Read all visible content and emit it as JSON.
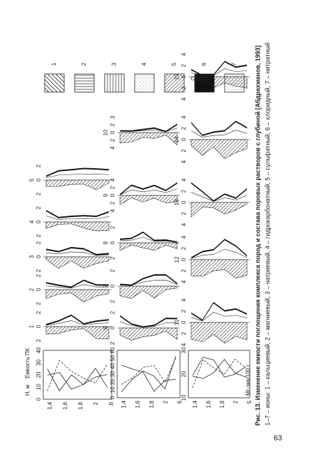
{
  "caption": {
    "title": "Рис. 13. Изменение емкости поглощения комплекса пород и состава поровых растворов с глубиной [Абдрахманов, 1993]",
    "legend_text": "1–7 – ионы: 1 – кальциевый, 2 – магниевый, 3 – натриевый, 4 – гидрокарбонатный, 5 – сульфатный, 6 – хлоридный, 7 – нитратный"
  },
  "legend": [
    "1",
    "2",
    "3",
    "4",
    "5",
    "6",
    "7"
  ],
  "axis": {
    "depth_label": "Н, м",
    "capacity_label": "Емкость ПК",
    "units_label": "Мг-экв/100 г"
  },
  "rows": [
    {
      "depth_ticks": [
        "1,4",
        "1,6",
        "1,8",
        "2",
        ",6"
      ],
      "capacity_ticks": [
        "0",
        "10",
        "20",
        "30",
        "40"
      ],
      "panels": [
        {
          "label": "1",
          "ticks": [
            "2",
            "0",
            "2"
          ]
        },
        {
          "label": "2",
          "ticks": [
            "2",
            "0",
            "2"
          ]
        },
        {
          "label": "3",
          "ticks": [
            "2",
            "0",
            "2"
          ]
        },
        {
          "label": "4",
          "ticks": [
            "2",
            "0",
            "2"
          ]
        },
        {
          "label": "5",
          "ticks": [
            "2",
            "0",
            "2"
          ]
        }
      ]
    },
    {
      "depth_ticks": [
        "1,4",
        "1,6",
        "1,8",
        "2",
        "6"
      ],
      "capacity_ticks": [
        "0",
        "10",
        "20",
        "30",
        "40",
        "50",
        "60"
      ],
      "panels": [
        {
          "label": "6",
          "ticks": [
            "2",
            "0",
            "2"
          ]
        },
        {
          "label": "7",
          "ticks": [
            "2",
            "0",
            "2"
          ]
        },
        {
          "label": "8",
          "ticks": [
            "2",
            "0",
            "2"
          ]
        },
        {
          "label": "9",
          "ticks": [
            "4",
            "2",
            "0",
            "2",
            "4"
          ]
        },
        {
          "label": "10",
          "ticks": [
            "4",
            "2",
            "0",
            "2",
            "3"
          ]
        }
      ]
    },
    {
      "depth_ticks": [
        "1,4",
        "1,6",
        "1,8",
        "2",
        "5"
      ],
      "capacity_ticks": [
        "10",
        "20",
        "30"
      ],
      "panels": [
        {
          "label": "11",
          "ticks": [
            "4",
            "2",
            "0",
            "2",
            "4"
          ]
        },
        {
          "label": "12",
          "ticks": [
            "4",
            "2",
            "0",
            "2",
            "4"
          ]
        },
        {
          "label": "13",
          "ticks": [
            "4",
            "2",
            "0",
            "2",
            "4"
          ]
        },
        {
          "label": "14",
          "ticks": [
            "4",
            "2",
            "0",
            "2",
            "4"
          ]
        },
        {
          "label": "15",
          "ticks": [
            "4",
            "2",
            "0",
            "2",
            "4"
          ]
        }
      ]
    }
  ],
  "page_number": "63"
}
